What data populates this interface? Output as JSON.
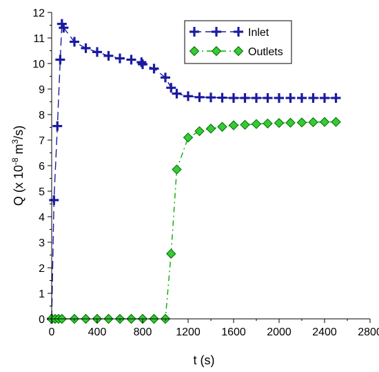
{
  "chart_data": {
    "type": "line",
    "xlabel": "t (s)",
    "ylabel": {
      "prefix": "Q (x 10",
      "exp1": "-8",
      "mid": " m",
      "exp2": "3",
      "suffix": "/s)"
    },
    "xlim": [
      0,
      2800
    ],
    "ylim": [
      0,
      12
    ],
    "xticks": [
      0,
      400,
      800,
      1200,
      1600,
      2000,
      2400,
      2800
    ],
    "yticks": [
      0,
      1,
      2,
      3,
      4,
      5,
      6,
      7,
      8,
      9,
      10,
      11,
      12
    ],
    "grid": false,
    "legend_position": "top-right",
    "series": [
      {
        "name": "Inlet",
        "color": "#1a1aa0",
        "marker": "plus",
        "line": "dashed",
        "points": [
          [
            0,
            0
          ],
          [
            20,
            4.65
          ],
          [
            50,
            7.55
          ],
          [
            75,
            10.15
          ],
          [
            90,
            11.55
          ],
          [
            105,
            11.4
          ],
          [
            200,
            10.85
          ],
          [
            300,
            10.6
          ],
          [
            400,
            10.45
          ],
          [
            500,
            10.3
          ],
          [
            600,
            10.2
          ],
          [
            700,
            10.15
          ],
          [
            790,
            10.05
          ],
          [
            800,
            9.97
          ],
          [
            900,
            9.8
          ],
          [
            1000,
            9.45
          ],
          [
            1050,
            9.05
          ],
          [
            1100,
            8.82
          ],
          [
            1200,
            8.72
          ],
          [
            1300,
            8.68
          ],
          [
            1400,
            8.67
          ],
          [
            1500,
            8.66
          ],
          [
            1600,
            8.65
          ],
          [
            1700,
            8.65
          ],
          [
            1800,
            8.65
          ],
          [
            1900,
            8.65
          ],
          [
            2000,
            8.65
          ],
          [
            2100,
            8.65
          ],
          [
            2200,
            8.65
          ],
          [
            2300,
            8.65
          ],
          [
            2400,
            8.65
          ],
          [
            2500,
            8.65
          ]
        ]
      },
      {
        "name": "Outlets",
        "color": "#00aa00",
        "marker": "diamond",
        "line": "dash-dot",
        "points": [
          [
            0,
            0
          ],
          [
            30,
            0
          ],
          [
            60,
            0
          ],
          [
            90,
            0
          ],
          [
            200,
            0
          ],
          [
            300,
            0
          ],
          [
            400,
            0
          ],
          [
            500,
            0
          ],
          [
            600,
            0
          ],
          [
            700,
            0
          ],
          [
            800,
            0
          ],
          [
            900,
            0
          ],
          [
            1000,
            0
          ],
          [
            1050,
            2.55
          ],
          [
            1100,
            5.85
          ],
          [
            1200,
            7.1
          ],
          [
            1300,
            7.35
          ],
          [
            1400,
            7.45
          ],
          [
            1500,
            7.52
          ],
          [
            1600,
            7.58
          ],
          [
            1700,
            7.6
          ],
          [
            1800,
            7.63
          ],
          [
            1900,
            7.65
          ],
          [
            2000,
            7.67
          ],
          [
            2100,
            7.68
          ],
          [
            2200,
            7.69
          ],
          [
            2300,
            7.7
          ],
          [
            2400,
            7.71
          ],
          [
            2500,
            7.71
          ]
        ]
      }
    ]
  }
}
